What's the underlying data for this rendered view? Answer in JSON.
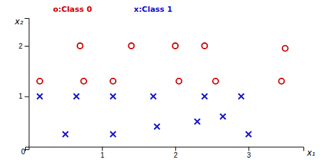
{
  "chart_data": {
    "type": "scatter",
    "x_label": "x₁",
    "y_label": "x₂",
    "series": [
      {
        "name": "o:Class 0",
        "color": "#cc0000",
        "marker": "circle",
        "x": [
          0.7,
          1.4,
          2.0,
          2.4,
          3.5,
          0.15,
          0.75,
          1.15,
          2.05,
          2.55,
          3.45
        ],
        "values": [
          2.0,
          2.0,
          2.0,
          2.0,
          1.95,
          1.3,
          1.3,
          1.3,
          1.3,
          1.3,
          1.3
        ]
      },
      {
        "name": "x:Class 1",
        "color": "#1111cc",
        "marker": "x",
        "x": [
          0.15,
          0.65,
          1.15,
          1.7,
          2.4,
          2.9,
          0.5,
          1.15,
          1.75,
          2.3,
          2.65,
          3.0
        ],
        "values": [
          1.0,
          1.0,
          1.0,
          1.0,
          1.0,
          1.0,
          0.25,
          0.25,
          0.4,
          0.5,
          0.6,
          0.25
        ]
      }
    ],
    "xlim": [
      -0.05,
      3.75
    ],
    "ylim": [
      -0.05,
      2.55
    ],
    "xticks": [
      1,
      2,
      3
    ],
    "yticks": [
      1,
      2
    ],
    "annotations": [
      {
        "text": "0",
        "x": 0,
        "y": 0
      }
    ],
    "legend": "top"
  }
}
